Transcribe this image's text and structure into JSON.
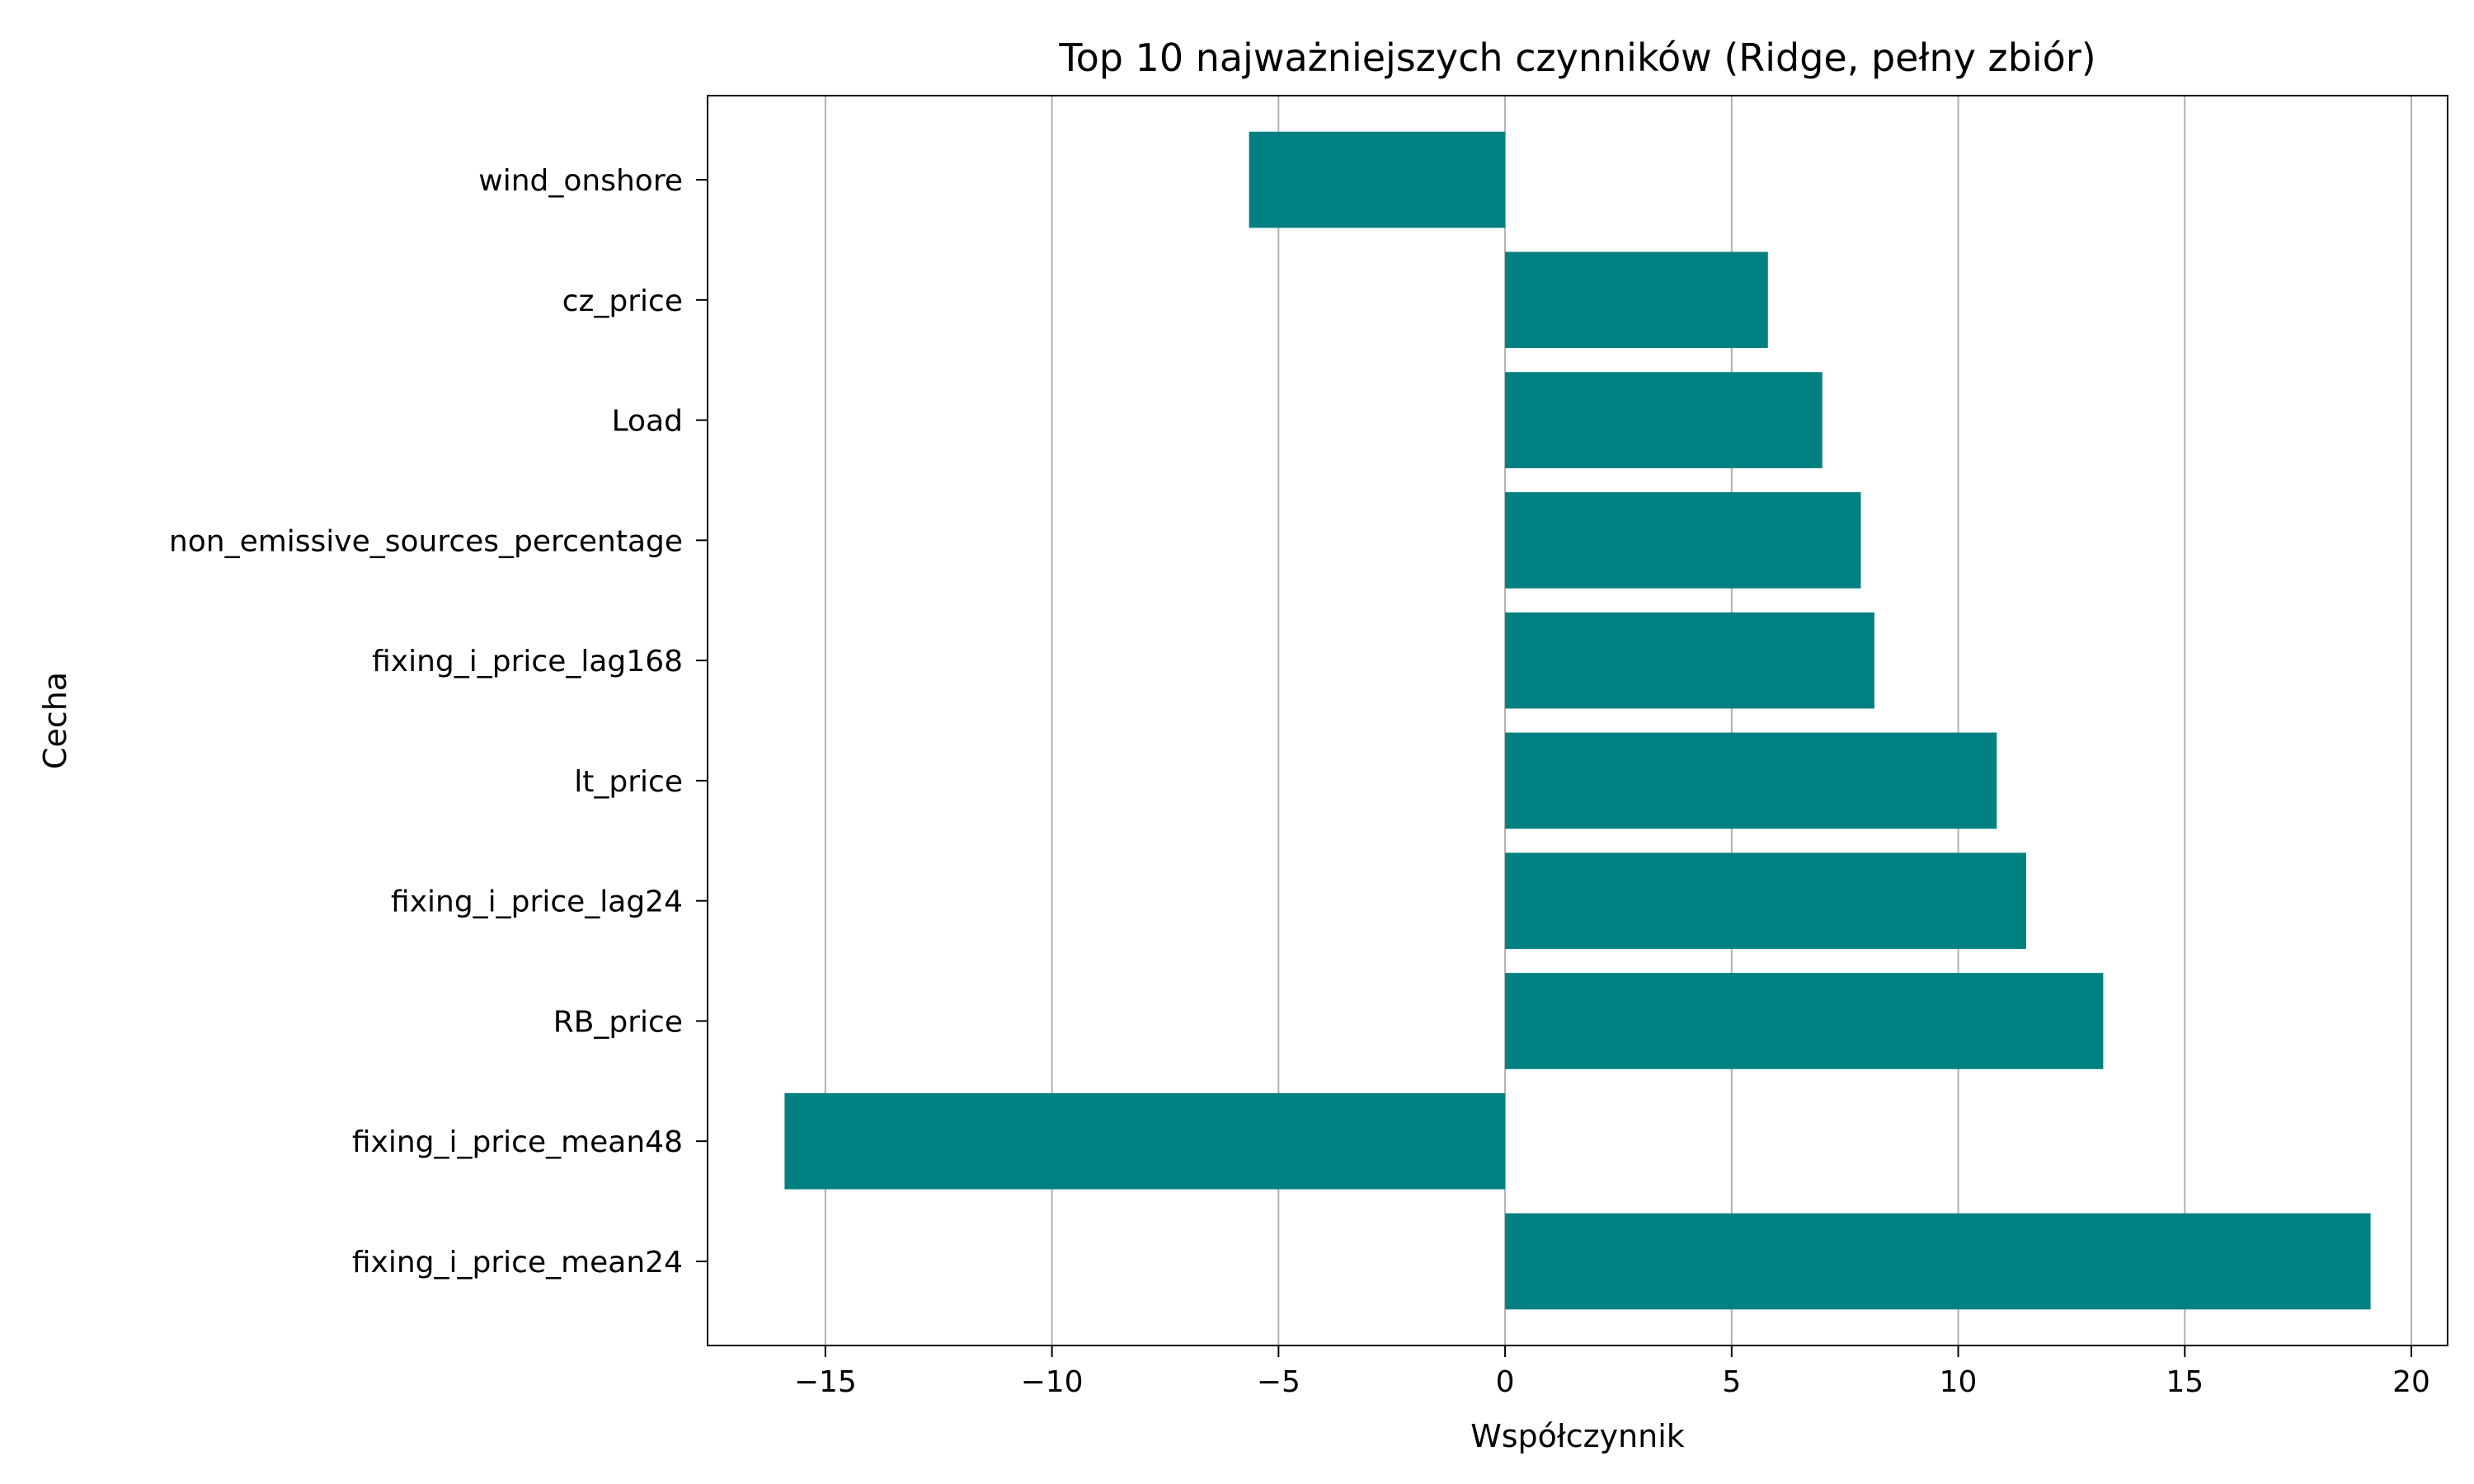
{
  "chart_data": {
    "type": "bar",
    "orientation": "horizontal",
    "title": "Top 10 najważniejszych czynników (Ridge, pełny zbiór)",
    "xlabel": "Współczynnik",
    "ylabel": "Cecha",
    "categories": [
      "fixing_i_price_mean24",
      "fixing_i_price_mean48",
      "RB_price",
      "fixing_i_price_lag24",
      "lt_price",
      "fixing_i_price_lag168",
      "non_emissive_sources_percentage",
      "Load",
      "cz_price",
      "wind_onshore"
    ],
    "values": [
      19.1,
      -15.9,
      13.2,
      11.5,
      10.85,
      8.15,
      7.85,
      7.0,
      5.8,
      -5.65
    ],
    "xlim": [
      -17.6,
      20.8
    ],
    "xticks": [
      -15,
      -10,
      -5,
      0,
      5,
      10,
      15,
      20
    ],
    "xtick_labels": [
      "−15",
      "−10",
      "−5",
      "0",
      "5",
      "10",
      "15",
      "20"
    ],
    "grid": "x",
    "bar_color": "#008080",
    "grid_color": "#b0b0b0"
  }
}
